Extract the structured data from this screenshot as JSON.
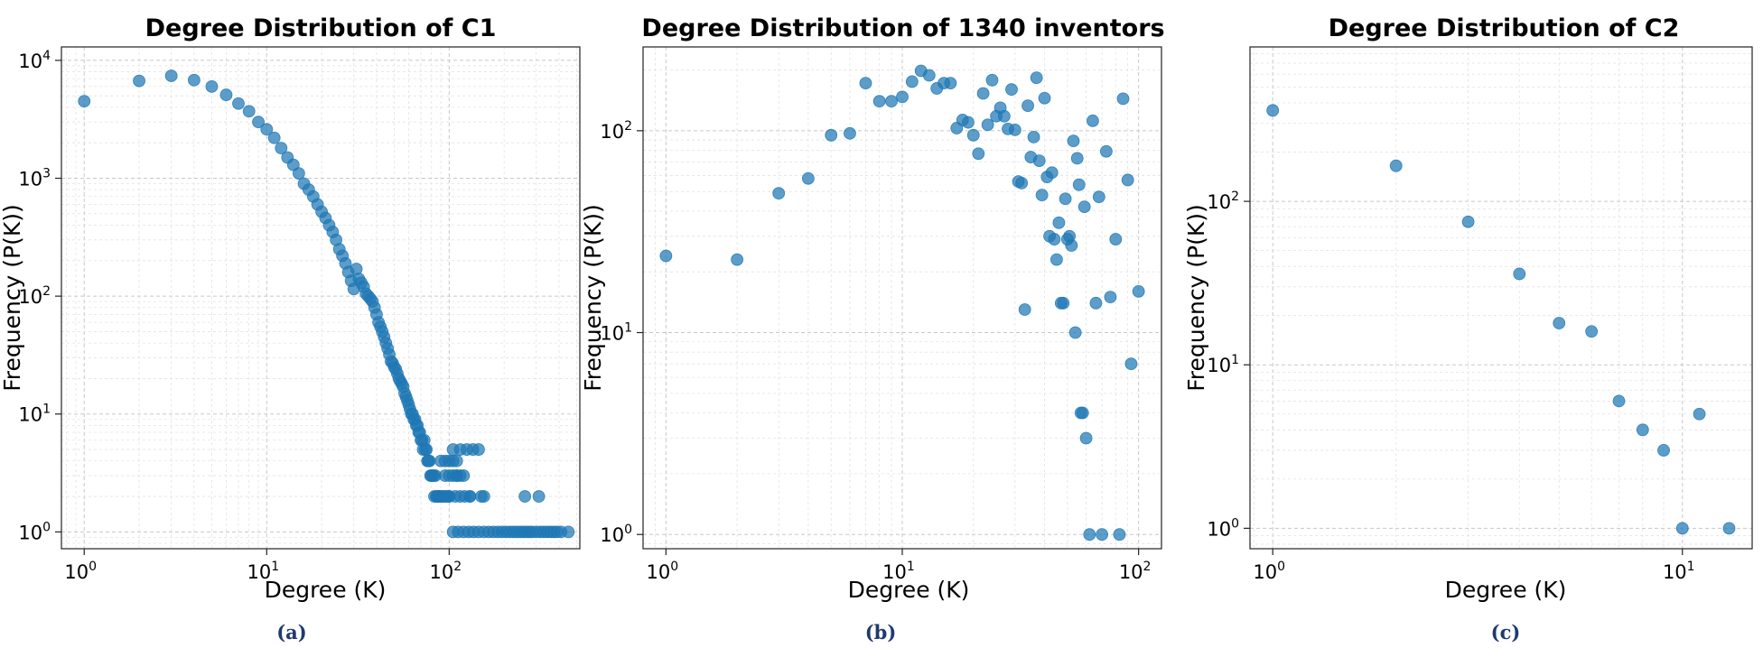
{
  "chart_data": [
    {
      "type": "scatter",
      "title": "Degree Distribution of C1",
      "xlabel": "Degree (K)",
      "ylabel": "Frequency (P(K))",
      "xscale": "log",
      "yscale": "log",
      "xlim": [
        0.75,
        520
      ],
      "ylim": [
        0.72,
        13000
      ],
      "grid": true,
      "caption": "(a)",
      "xticks": [
        {
          "base": "10",
          "exp": "0",
          "value": 1
        },
        {
          "base": "10",
          "exp": "1",
          "value": 10
        },
        {
          "base": "10",
          "exp": "2",
          "value": 100
        }
      ],
      "yticks": [
        {
          "base": "10",
          "exp": "0",
          "value": 1
        },
        {
          "base": "10",
          "exp": "1",
          "value": 10
        },
        {
          "base": "10",
          "exp": "2",
          "value": 100
        },
        {
          "base": "10",
          "exp": "3",
          "value": 1000
        },
        {
          "base": "10",
          "exp": "4",
          "value": 10000
        }
      ],
      "series": [
        {
          "x": [
            1,
            2,
            3,
            4,
            5,
            6,
            7,
            8,
            9,
            10,
            11,
            12,
            13,
            14,
            15,
            16,
            17,
            18,
            19,
            20,
            21,
            22,
            23,
            24,
            25,
            26,
            27,
            28,
            29,
            30,
            31,
            32,
            33,
            34,
            35,
            36,
            37,
            38,
            39,
            40,
            41,
            42,
            43,
            44,
            45,
            46,
            47,
            48,
            49,
            50,
            51,
            52,
            53,
            54,
            55,
            56,
            57,
            58,
            59,
            60,
            61,
            62,
            63,
            64,
            65,
            66,
            67,
            68,
            69,
            70,
            71,
            72,
            73,
            74,
            75,
            76,
            77,
            78,
            79,
            80,
            81,
            82,
            83,
            84,
            85,
            86,
            87,
            88,
            89,
            90,
            92,
            94,
            96,
            98,
            100,
            90,
            95,
            100,
            105,
            110,
            95,
            100,
            105,
            110,
            115,
            120,
            100,
            108,
            115,
            122,
            130,
            105,
            115,
            125,
            135,
            145,
            150,
            155,
            110,
            130,
            260,
            310,
            105,
            112,
            120,
            128,
            136,
            145,
            155,
            165,
            175,
            185,
            195,
            205,
            215,
            225,
            235,
            245,
            255,
            265,
            275,
            285,
            300,
            315,
            330,
            345,
            360,
            375,
            390,
            410,
            450
          ],
          "y": [
            4500,
            6700,
            7400,
            6800,
            6000,
            5100,
            4300,
            3700,
            3000,
            2600,
            2200,
            1800,
            1500,
            1300,
            1100,
            900,
            800,
            700,
            600,
            520,
            460,
            400,
            350,
            300,
            250,
            220,
            190,
            160,
            135,
            115,
            170,
            140,
            130,
            120,
            105,
            100,
            95,
            90,
            80,
            70,
            60,
            55,
            50,
            45,
            40,
            36,
            32,
            28,
            27,
            25,
            24,
            22,
            20,
            19,
            18,
            17,
            15,
            14,
            13,
            12,
            11,
            10,
            10,
            9,
            9,
            8,
            8,
            7,
            7,
            6,
            6,
            5,
            6,
            5,
            5,
            4,
            4,
            4,
            3,
            3,
            3,
            3,
            2,
            3,
            2,
            2,
            2,
            2,
            2,
            2,
            2,
            2,
            2,
            2,
            2,
            4,
            4,
            4,
            4,
            4,
            3,
            3,
            3,
            3,
            3,
            3,
            2,
            2,
            2,
            2,
            2,
            5,
            5,
            5,
            5,
            5,
            2,
            2,
            3,
            2,
            2,
            2,
            1,
            1,
            1,
            1,
            1,
            1,
            1,
            1,
            1,
            1,
            1,
            1,
            1,
            1,
            1,
            1,
            1,
            1,
            1,
            1,
            1,
            1,
            1,
            1,
            1,
            1,
            1,
            1,
            1
          ]
        }
      ]
    },
    {
      "type": "scatter",
      "title": "Degree Distribution of 1340 inventors",
      "xlabel": "Degree (K)",
      "ylabel": "Frequency (P(K))",
      "xscale": "log",
      "yscale": "log",
      "xlim": [
        0.8,
        125
      ],
      "ylim": [
        0.85,
        260
      ],
      "grid": true,
      "caption": "(b)",
      "xticks": [
        {
          "base": "10",
          "exp": "0",
          "value": 1
        },
        {
          "base": "10",
          "exp": "1",
          "value": 10
        },
        {
          "base": "10",
          "exp": "2",
          "value": 100
        }
      ],
      "yticks": [
        {
          "base": "10",
          "exp": "0",
          "value": 1
        },
        {
          "base": "10",
          "exp": "1",
          "value": 10
        },
        {
          "base": "10",
          "exp": "2",
          "value": 100
        }
      ],
      "series": [
        {
          "x": [
            1,
            2,
            3,
            4,
            5,
            6,
            7,
            8,
            9,
            10,
            11,
            12,
            13,
            14,
            15,
            16,
            17,
            18,
            19,
            20,
            21,
            22,
            23,
            24,
            25,
            26,
            27,
            28,
            29,
            30,
            31,
            32,
            33,
            34,
            35,
            36,
            37,
            38,
            39,
            40,
            41,
            42,
            43,
            44,
            45,
            46,
            47,
            48,
            49,
            50,
            51,
            52,
            53,
            54,
            55,
            56,
            57,
            58,
            59,
            60,
            62,
            64,
            66,
            68,
            70,
            73,
            76,
            80,
            83,
            86,
            90,
            93,
            100
          ],
          "y": [
            24,
            23,
            49,
            58,
            95,
            97,
            172,
            140,
            140,
            147,
            175,
            198,
            188,
            162,
            172,
            172,
            103,
            113,
            110,
            95,
            77,
            153,
            107,
            178,
            118,
            130,
            118,
            102,
            160,
            101,
            56,
            55,
            13,
            133,
            74,
            93,
            183,
            71,
            48,
            145,
            59,
            30,
            62,
            29,
            23,
            35,
            14,
            14,
            46,
            29,
            30,
            27,
            89,
            10,
            73,
            54,
            4,
            4,
            42,
            3,
            1,
            112,
            14,
            47,
            1,
            79,
            15,
            29,
            1,
            144,
            57,
            7,
            16
          ]
        }
      ]
    },
    {
      "type": "scatter",
      "title": "Degree Distribution of C2",
      "xlabel": "Degree (K)",
      "ylabel": "Frequency (P(K))",
      "xscale": "log",
      "yscale": "log",
      "xlim": [
        0.88,
        14.8
      ],
      "ylim": [
        0.75,
        880
      ],
      "grid": true,
      "caption": "(c)",
      "xticks": [
        {
          "base": "10",
          "exp": "0",
          "value": 1
        },
        {
          "base": "10",
          "exp": "1",
          "value": 10
        }
      ],
      "yticks": [
        {
          "base": "10",
          "exp": "0",
          "value": 1
        },
        {
          "base": "10",
          "exp": "1",
          "value": 10
        },
        {
          "base": "10",
          "exp": "2",
          "value": 100
        }
      ],
      "series": [
        {
          "x": [
            1,
            2,
            3,
            4,
            5,
            6,
            7,
            8,
            9,
            10,
            11,
            13
          ],
          "y": [
            360,
            165,
            75,
            36,
            18,
            16,
            6,
            4,
            3,
            1,
            5,
            1
          ]
        }
      ]
    }
  ]
}
